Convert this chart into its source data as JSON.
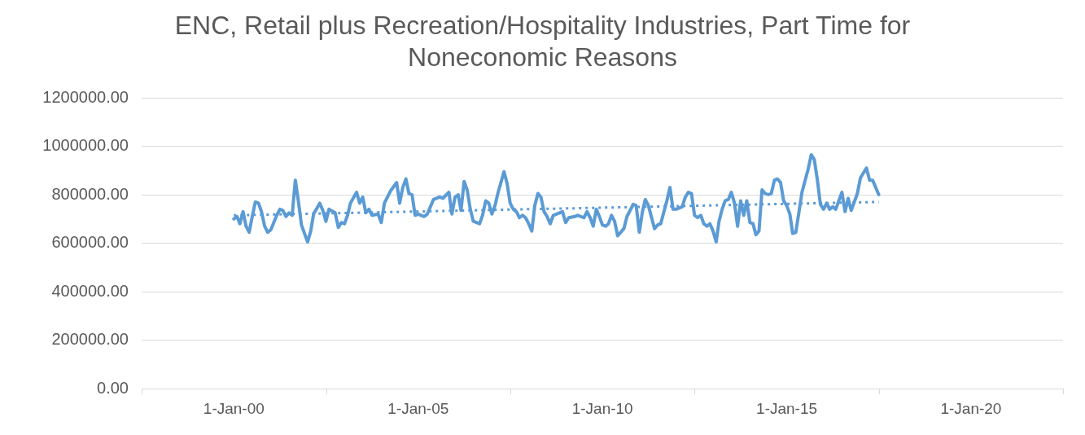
{
  "chart_data": {
    "type": "line",
    "title": "ENC, Retail plus Recreation/Hospitality Industries, Part Time for Noneconomic Reasons",
    "xlim": [
      "1997-07-01",
      "2022-07-01"
    ],
    "xticks": [
      {
        "value": "2000-01-01",
        "label": "1-Jan-00"
      },
      {
        "value": "2005-01-01",
        "label": "1-Jan-05"
      },
      {
        "value": "2010-01-01",
        "label": "1-Jan-10"
      },
      {
        "value": "2015-01-01",
        "label": "1-Jan-15"
      },
      {
        "value": "2020-01-01",
        "label": "1-Jan-20"
      }
    ],
    "ylim": [
      0,
      1200000
    ],
    "yticks": [
      {
        "value": 0,
        "label": "0.00"
      },
      {
        "value": 200000,
        "label": "200000.00"
      },
      {
        "value": 400000,
        "label": "400000.00"
      },
      {
        "value": 600000,
        "label": "600000.00"
      },
      {
        "value": 800000,
        "label": "800000.00"
      },
      {
        "value": 1000000,
        "label": "1000000.00"
      },
      {
        "value": 1200000,
        "label": "1200000.00"
      }
    ],
    "grid": "y",
    "legend": false,
    "marker": "none",
    "series": [
      {
        "color": "#5b9bd5",
        "x": [
          "2000-01",
          "2000-02",
          "2000-03",
          "2000-04",
          "2000-05",
          "2000-06",
          "2000-07",
          "2000-08",
          "2000-09",
          "2000-10",
          "2000-11",
          "2000-12",
          "2001-01",
          "2001-03",
          "2001-04",
          "2001-05",
          "2001-06",
          "2001-07",
          "2001-08",
          "2001-09",
          "2001-10",
          "2001-11",
          "2001-12",
          "2002-01",
          "2002-02",
          "2002-03",
          "2002-05",
          "2002-06",
          "2002-07",
          "2002-08",
          "2002-10",
          "2002-11",
          "2002-12",
          "2003-01",
          "2003-02",
          "2003-03",
          "2003-05",
          "2003-06",
          "2003-07",
          "2003-08",
          "2003-09",
          "2003-10",
          "2003-12",
          "2004-01",
          "2004-02",
          "2004-04",
          "2004-06",
          "2004-07",
          "2004-08",
          "2004-09",
          "2004-10",
          "2004-11",
          "2004-12",
          "2005-01",
          "2005-03",
          "2005-04",
          "2005-06",
          "2005-08",
          "2005-09",
          "2005-11",
          "2005-12",
          "2006-01",
          "2006-02",
          "2006-03",
          "2006-04",
          "2006-05",
          "2006-06",
          "2006-07",
          "2006-09",
          "2006-10",
          "2006-11",
          "2006-12",
          "2007-01",
          "2007-02",
          "2007-03",
          "2007-05",
          "2007-06",
          "2007-07",
          "2007-08",
          "2007-09",
          "2007-10",
          "2007-11",
          "2007-12",
          "2008-01",
          "2008-02",
          "2008-03",
          "2008-04",
          "2008-05",
          "2008-06",
          "2008-07",
          "2008-08",
          "2008-09",
          "2008-10",
          "2008-12",
          "2009-01",
          "2009-02",
          "2009-04",
          "2009-05",
          "2009-07",
          "2009-08",
          "2009-09",
          "2009-10",
          "2009-11",
          "2009-12",
          "2010-01",
          "2010-02",
          "2010-03",
          "2010-04",
          "2010-05",
          "2010-06",
          "2010-08",
          "2010-09",
          "2010-11",
          "2010-12",
          "2011-01",
          "2011-02",
          "2011-03",
          "2011-04",
          "2011-06",
          "2011-07",
          "2011-08",
          "2011-10",
          "2011-11",
          "2011-12",
          "2012-01",
          "2012-03",
          "2012-04",
          "2012-05",
          "2012-06",
          "2012-07",
          "2012-08",
          "2012-09",
          "2012-10",
          "2012-11",
          "2012-12",
          "2013-01",
          "2013-02",
          "2013-03",
          "2013-04",
          "2013-05",
          "2013-06",
          "2013-07",
          "2013-08",
          "2013-09",
          "2013-10",
          "2013-11",
          "2013-12",
          "2014-01",
          "2014-02",
          "2014-03",
          "2014-04",
          "2014-05",
          "2014-06",
          "2014-07",
          "2014-08",
          "2014-09",
          "2014-10",
          "2014-11",
          "2014-12",
          "2015-01",
          "2015-02",
          "2015-03",
          "2015-04",
          "2015-05",
          "2015-06",
          "2015-08",
          "2015-09",
          "2015-10",
          "2015-11",
          "2015-12",
          "2016-01",
          "2016-02",
          "2016-03",
          "2016-04",
          "2016-05",
          "2016-07",
          "2016-08",
          "2016-09",
          "2016-10",
          "2016-11",
          "2016-12",
          "2017-01",
          "2017-03",
          "2017-04",
          "2017-05",
          "2017-07"
        ],
        "values": [
          700000,
          710000,
          680000,
          730000,
          670000,
          645000,
          710000,
          770000,
          765000,
          730000,
          670000,
          645000,
          655000,
          715000,
          740000,
          735000,
          710000,
          725000,
          715000,
          860000,
          775000,
          675000,
          640000,
          605000,
          650000,
          720000,
          765000,
          735000,
          690000,
          740000,
          725000,
          665000,
          685000,
          680000,
          715000,
          765000,
          810000,
          765000,
          790000,
          725000,
          740000,
          715000,
          720000,
          685000,
          765000,
          815000,
          850000,
          765000,
          830000,
          865000,
          805000,
          800000,
          715000,
          720000,
          710000,
          720000,
          780000,
          790000,
          785000,
          810000,
          720000,
          790000,
          800000,
          735000,
          855000,
          820000,
          740000,
          690000,
          680000,
          715000,
          775000,
          765000,
          720000,
          755000,
          805000,
          895000,
          845000,
          765000,
          740000,
          730000,
          705000,
          715000,
          705000,
          680000,
          650000,
          755000,
          805000,
          790000,
          730000,
          710000,
          680000,
          715000,
          720000,
          730000,
          685000,
          705000,
          710000,
          715000,
          705000,
          730000,
          705000,
          670000,
          740000,
          710000,
          675000,
          670000,
          680000,
          715000,
          690000,
          630000,
          660000,
          710000,
          760000,
          755000,
          645000,
          730000,
          780000,
          755000,
          660000,
          675000,
          680000,
          775000,
          830000,
          740000,
          740000,
          750000,
          790000,
          810000,
          805000,
          715000,
          705000,
          715000,
          680000,
          670000,
          680000,
          650000,
          605000,
          690000,
          740000,
          775000,
          780000,
          810000,
          765000,
          670000,
          775000,
          715000,
          775000,
          685000,
          680000,
          635000,
          650000,
          820000,
          805000,
          800000,
          805000,
          860000,
          865000,
          850000,
          775000,
          755000,
          720000,
          640000,
          645000,
          725000,
          810000,
          905000,
          965000,
          945000,
          860000,
          760000,
          740000,
          765000,
          740000,
          750000,
          740000,
          810000,
          730000,
          785000,
          735000,
          770000,
          805000,
          870000,
          910000,
          860000,
          860000,
          800000
        ]
      },
      {
        "type": "line",
        "line_style": "dotted",
        "color": "#5b9bd5",
        "x": [
          "2000-01",
          "2017-07"
        ],
        "values": [
          715000,
          770000
        ]
      }
    ]
  }
}
